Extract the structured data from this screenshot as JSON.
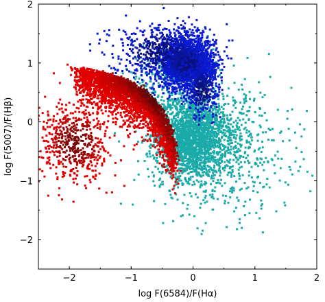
{
  "chart_data": {
    "type": "scatter",
    "title": "",
    "xlabel": "log F(6584)/F(Hα)",
    "ylabel": "log F(5007)/F(Hβ)",
    "xlim": [
      -2.5,
      2.0
    ],
    "ylim": [
      -2.5,
      2.0
    ],
    "xticks": [
      -2,
      -1,
      0,
      1,
      2
    ],
    "yticks": [
      -2,
      -1,
      0,
      1,
      2
    ],
    "xtick_labels": [
      "−2",
      "−1",
      "0",
      "1",
      "2"
    ],
    "ytick_labels": [
      "−2",
      "−1",
      "0",
      "1",
      "2"
    ],
    "grid": false,
    "legend": "none",
    "colors": {
      "red": "#e00000",
      "dark_red": "#3a0a0a",
      "blue": "#0a1ad0",
      "dark_blue": "#0a0a40",
      "teal": "#1aaaa8"
    },
    "series": [
      {
        "color_key": "teal",
        "clusters": [
          {
            "cx": -0.05,
            "cy": -0.25,
            "sx": 0.28,
            "sy": 0.35,
            "n": 2000
          },
          {
            "cx": 0.5,
            "cy": -0.45,
            "sx": 0.55,
            "sy": 0.55,
            "n": 700
          },
          {
            "cx": -0.4,
            "cy": 0.75,
            "sx": 0.35,
            "sy": 0.25,
            "n": 200
          }
        ]
      },
      {
        "color_key": "blue",
        "clusters": [
          {
            "cx": -0.1,
            "cy": 1.0,
            "sx": 0.22,
            "sy": 0.22,
            "n": 2200
          },
          {
            "cx": -0.55,
            "cy": 1.2,
            "sx": 0.4,
            "sy": 0.25,
            "n": 500
          },
          {
            "cx": 0.15,
            "cy": 0.55,
            "sx": 0.15,
            "sy": 0.25,
            "n": 300
          }
        ]
      },
      {
        "color_key": "red",
        "arc": {
          "x_start": -1.9,
          "x_end": -0.3,
          "n": 3200
        },
        "clusters": [
          {
            "cx": -1.9,
            "cy": -0.35,
            "sx": 0.3,
            "sy": 0.35,
            "n": 550
          }
        ]
      }
    ]
  }
}
